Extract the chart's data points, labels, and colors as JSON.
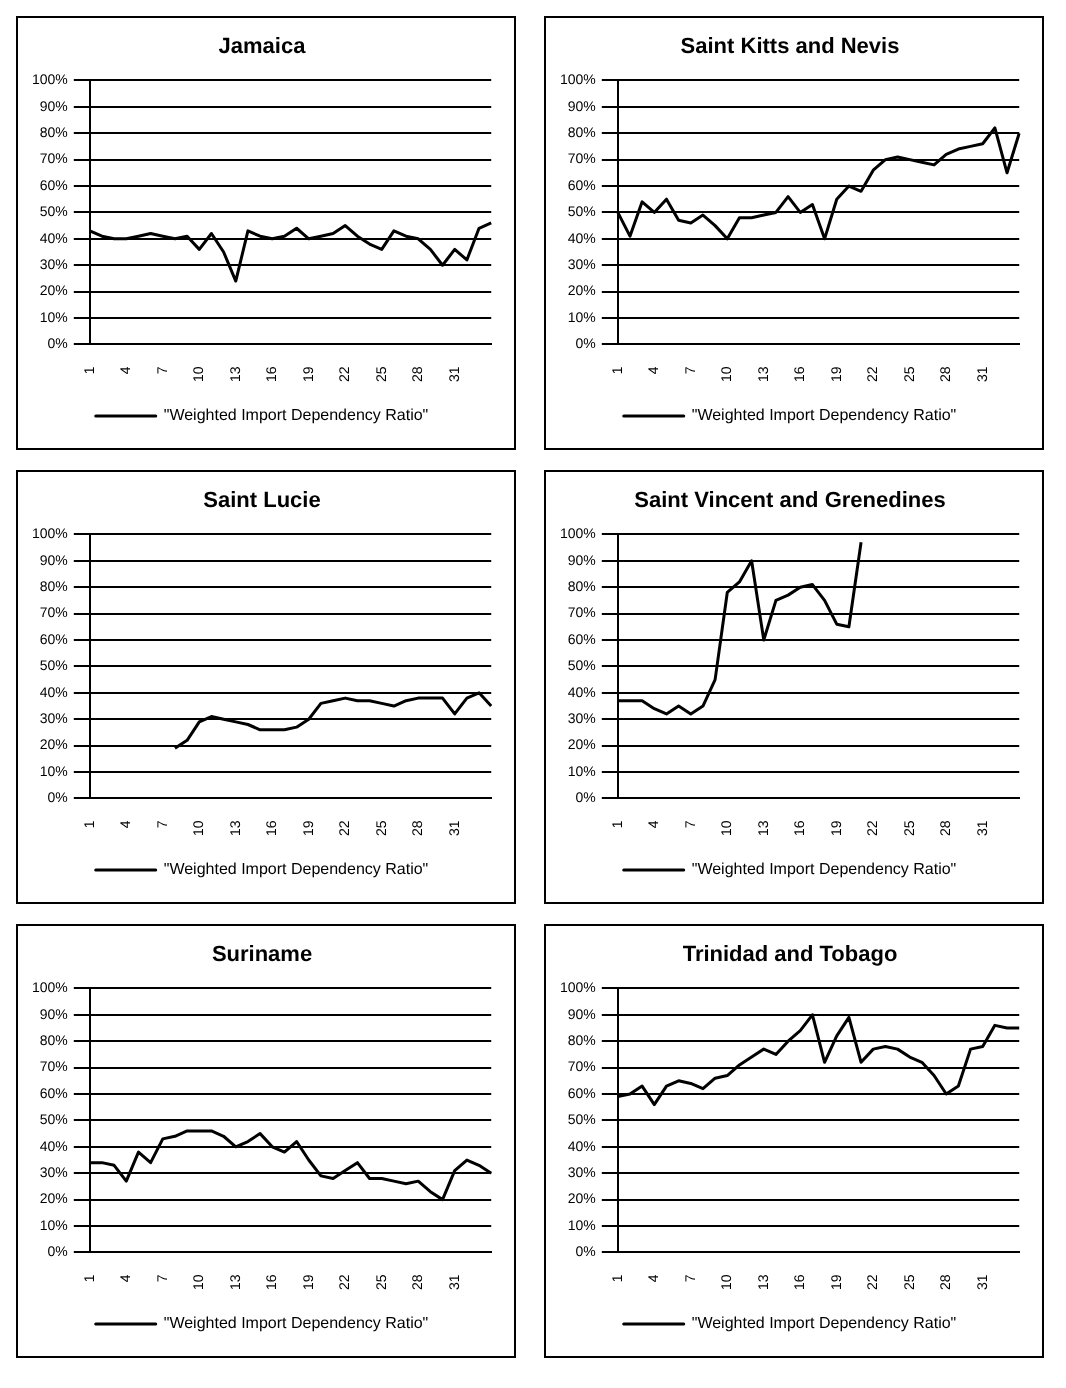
{
  "chart_data": [
    {
      "type": "line",
      "title": "Jamaica",
      "categories": [
        "1",
        null,
        null,
        "4",
        null,
        null,
        "7",
        null,
        null,
        "10",
        null,
        null,
        "13",
        null,
        null,
        "16",
        null,
        null,
        "19",
        null,
        null,
        "22",
        null,
        null,
        "25",
        null,
        null,
        "28",
        null,
        null,
        "31",
        null,
        null,
        null
      ],
      "series": [
        {
          "name": "\"Weighted Import Dependency Ratio\"",
          "color": "#000000",
          "values": [
            43,
            41,
            40,
            40,
            41,
            42,
            41,
            40,
            41,
            36,
            42,
            35,
            24,
            43,
            41,
            40,
            41,
            44,
            40,
            41,
            42,
            45,
            41,
            38,
            36,
            43,
            41,
            40,
            36,
            30,
            36,
            32,
            44,
            46
          ]
        }
      ],
      "ylim": [
        0,
        100
      ],
      "yticks": [
        {
          "value": 0,
          "label": "0%"
        },
        {
          "value": 10,
          "label": "10%"
        },
        {
          "value": 20,
          "label": "20%"
        },
        {
          "value": 30,
          "label": "30%"
        },
        {
          "value": 40,
          "label": "40%"
        },
        {
          "value": 50,
          "label": "50%"
        },
        {
          "value": 60,
          "label": "60%"
        },
        {
          "value": 70,
          "label": "70%"
        },
        {
          "value": 80,
          "label": "80%"
        },
        {
          "value": 90,
          "label": "90%"
        },
        {
          "value": 100,
          "label": "100%"
        }
      ],
      "grid": "y",
      "legend": "bottom",
      "marker": "none"
    },
    {
      "type": "line",
      "title": "Saint Kitts and Nevis",
      "categories": [
        "1",
        null,
        null,
        "4",
        null,
        null,
        "7",
        null,
        null,
        "10",
        null,
        null,
        "13",
        null,
        null,
        "16",
        null,
        null,
        "19",
        null,
        null,
        "22",
        null,
        null,
        "25",
        null,
        null,
        "28",
        null,
        null,
        "31",
        null,
        null,
        null
      ],
      "series": [
        {
          "name": "\"Weighted Import Dependency Ratio\"",
          "color": "#000000",
          "values": [
            50,
            41,
            54,
            50,
            55,
            47,
            46,
            49,
            45,
            40,
            48,
            48,
            49,
            50,
            56,
            50,
            53,
            40,
            55,
            60,
            58,
            66,
            70,
            71,
            70,
            69,
            68,
            72,
            74,
            75,
            76,
            82,
            65,
            80
          ]
        }
      ],
      "ylim": [
        0,
        100
      ],
      "yticks": [
        {
          "value": 0,
          "label": "0%"
        },
        {
          "value": 10,
          "label": "10%"
        },
        {
          "value": 20,
          "label": "20%"
        },
        {
          "value": 30,
          "label": "30%"
        },
        {
          "value": 40,
          "label": "40%"
        },
        {
          "value": 50,
          "label": "50%"
        },
        {
          "value": 60,
          "label": "60%"
        },
        {
          "value": 70,
          "label": "70%"
        },
        {
          "value": 80,
          "label": "80%"
        },
        {
          "value": 90,
          "label": "90%"
        },
        {
          "value": 100,
          "label": "100%"
        }
      ],
      "grid": "y",
      "legend": "bottom",
      "marker": "none"
    },
    {
      "type": "line",
      "title": "Saint Lucie",
      "categories": [
        "1",
        null,
        null,
        "4",
        null,
        null,
        "7",
        null,
        null,
        "10",
        null,
        null,
        "13",
        null,
        null,
        "16",
        null,
        null,
        "19",
        null,
        null,
        "22",
        null,
        null,
        "25",
        null,
        null,
        "28",
        null,
        null,
        "31",
        null,
        null,
        null
      ],
      "series": [
        {
          "name": "\"Weighted Import Dependency Ratio\"",
          "color": "#000000",
          "values": [
            null,
            null,
            null,
            null,
            null,
            null,
            null,
            19,
            22,
            29,
            31,
            30,
            29,
            28,
            26,
            26,
            26,
            27,
            30,
            36,
            37,
            38,
            37,
            37,
            36,
            35,
            37,
            38,
            38,
            38,
            32,
            38,
            40,
            35
          ]
        }
      ],
      "ylim": [
        0,
        100
      ],
      "yticks": [
        {
          "value": 0,
          "label": "0%"
        },
        {
          "value": 10,
          "label": "10%"
        },
        {
          "value": 20,
          "label": "20%"
        },
        {
          "value": 30,
          "label": "30%"
        },
        {
          "value": 40,
          "label": "40%"
        },
        {
          "value": 50,
          "label": "50%"
        },
        {
          "value": 60,
          "label": "60%"
        },
        {
          "value": 70,
          "label": "70%"
        },
        {
          "value": 80,
          "label": "80%"
        },
        {
          "value": 90,
          "label": "90%"
        },
        {
          "value": 100,
          "label": "100%"
        }
      ],
      "grid": "y",
      "legend": "bottom",
      "marker": "none"
    },
    {
      "type": "line",
      "title": "Saint Vincent and Grenedines",
      "categories": [
        "1",
        null,
        null,
        "4",
        null,
        null,
        "7",
        null,
        null,
        "10",
        null,
        null,
        "13",
        null,
        null,
        "16",
        null,
        null,
        "19",
        null,
        null,
        "22",
        null,
        null,
        "25",
        null,
        null,
        "28",
        null,
        null,
        "31",
        null,
        null,
        null
      ],
      "series": [
        {
          "name": "\"Weighted Import Dependency Ratio\"",
          "color": "#000000",
          "values": [
            37,
            37,
            37,
            34,
            32,
            35,
            32,
            35,
            45,
            78,
            82,
            90,
            60,
            75,
            77,
            80,
            81,
            75,
            66,
            65,
            97,
            null,
            null,
            null,
            null,
            null,
            null,
            null,
            null,
            null,
            null,
            null,
            null,
            null
          ]
        }
      ],
      "ylim": [
        0,
        100
      ],
      "yticks": [
        {
          "value": 0,
          "label": "0%"
        },
        {
          "value": 10,
          "label": "10%"
        },
        {
          "value": 20,
          "label": "20%"
        },
        {
          "value": 30,
          "label": "30%"
        },
        {
          "value": 40,
          "label": "40%"
        },
        {
          "value": 50,
          "label": "50%"
        },
        {
          "value": 60,
          "label": "60%"
        },
        {
          "value": 70,
          "label": "70%"
        },
        {
          "value": 80,
          "label": "80%"
        },
        {
          "value": 90,
          "label": "90%"
        },
        {
          "value": 100,
          "label": "100%"
        }
      ],
      "grid": "y",
      "legend": "bottom",
      "marker": "none"
    },
    {
      "type": "line",
      "title": "Suriname",
      "categories": [
        "1",
        null,
        null,
        "4",
        null,
        null,
        "7",
        null,
        null,
        "10",
        null,
        null,
        "13",
        null,
        null,
        "16",
        null,
        null,
        "19",
        null,
        null,
        "22",
        null,
        null,
        "25",
        null,
        null,
        "28",
        null,
        null,
        "31",
        null,
        null,
        null
      ],
      "series": [
        {
          "name": "\"Weighted Import Dependency Ratio\"",
          "color": "#000000",
          "values": [
            34,
            34,
            33,
            27,
            38,
            34,
            43,
            44,
            46,
            46,
            46,
            44,
            40,
            42,
            45,
            40,
            38,
            42,
            35,
            29,
            28,
            31,
            34,
            28,
            28,
            27,
            26,
            27,
            23,
            20,
            31,
            35,
            33,
            30
          ]
        }
      ],
      "ylim": [
        0,
        100
      ],
      "yticks": [
        {
          "value": 0,
          "label": "0%"
        },
        {
          "value": 10,
          "label": "10%"
        },
        {
          "value": 20,
          "label": "20%"
        },
        {
          "value": 30,
          "label": "30%"
        },
        {
          "value": 40,
          "label": "40%"
        },
        {
          "value": 50,
          "label": "50%"
        },
        {
          "value": 60,
          "label": "60%"
        },
        {
          "value": 70,
          "label": "70%"
        },
        {
          "value": 80,
          "label": "80%"
        },
        {
          "value": 90,
          "label": "90%"
        },
        {
          "value": 100,
          "label": "100%"
        }
      ],
      "grid": "y",
      "legend": "bottom",
      "marker": "none"
    },
    {
      "type": "line",
      "title": "Trinidad and Tobago",
      "categories": [
        "1",
        null,
        null,
        "4",
        null,
        null,
        "7",
        null,
        null,
        "10",
        null,
        null,
        "13",
        null,
        null,
        "16",
        null,
        null,
        "19",
        null,
        null,
        "22",
        null,
        null,
        "25",
        null,
        null,
        "28",
        null,
        null,
        "31",
        null,
        null,
        null
      ],
      "series": [
        {
          "name": "\"Weighted Import Dependency Ratio\"",
          "color": "#000000",
          "values": [
            59,
            60,
            63,
            56,
            63,
            65,
            64,
            62,
            66,
            67,
            71,
            74,
            77,
            75,
            80,
            84,
            90,
            72,
            82,
            89,
            72,
            77,
            78,
            77,
            74,
            72,
            67,
            60,
            63,
            77,
            78,
            86,
            85,
            85
          ]
        }
      ],
      "ylim": [
        0,
        100
      ],
      "yticks": [
        {
          "value": 0,
          "label": "0%"
        },
        {
          "value": 10,
          "label": "10%"
        },
        {
          "value": 20,
          "label": "20%"
        },
        {
          "value": 30,
          "label": "30%"
        },
        {
          "value": 40,
          "label": "40%"
        },
        {
          "value": 50,
          "label": "50%"
        },
        {
          "value": 60,
          "label": "60%"
        },
        {
          "value": 70,
          "label": "70%"
        },
        {
          "value": 80,
          "label": "80%"
        },
        {
          "value": 90,
          "label": "90%"
        },
        {
          "value": 100,
          "label": "100%"
        }
      ],
      "grid": "y",
      "legend": "bottom",
      "marker": "none"
    }
  ]
}
